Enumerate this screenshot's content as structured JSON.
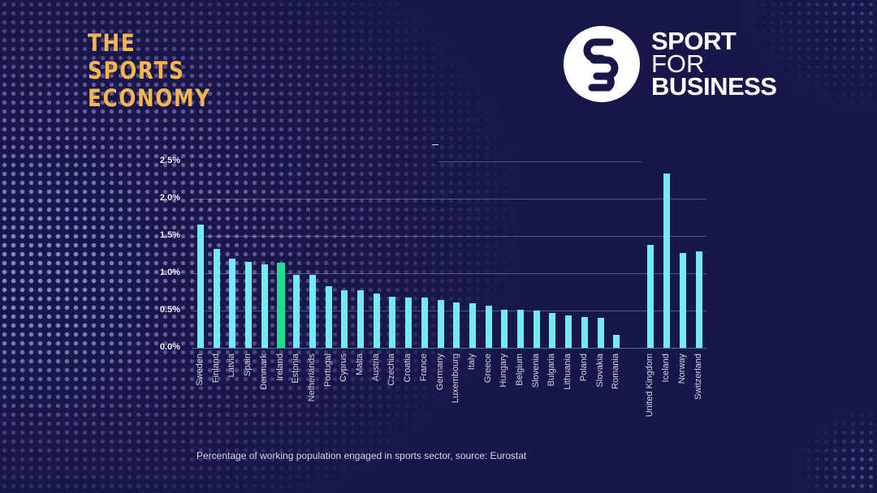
{
  "branding": {
    "left_title_lines": [
      "THE",
      "SPORTS",
      "ECONOMY"
    ],
    "right_logo": {
      "icon": "sb-monogram-icon",
      "lines": [
        "SPORT",
        "FOR",
        "BUSINESS"
      ]
    }
  },
  "colors": {
    "background": "#18174a",
    "bar": "#74eaf7",
    "highlight_bar": "#17e08f",
    "brand_orange": "#f7b54e"
  },
  "caption": "Percentage of working population engaged in sports sector, source: Eurostat",
  "chart_data": {
    "type": "bar",
    "title": "",
    "xlabel": "",
    "ylabel": "",
    "ylim": [
      0,
      2.5
    ],
    "y_ticks": [
      "0.0%",
      "0.5%",
      "1.0%",
      "1.5%",
      "2.0%",
      "2.5%"
    ],
    "grid": true,
    "legend": null,
    "highlight": "Ireland",
    "note": "Caption: Percentage of working population engaged in sports sector, source: Eurostat",
    "categories": [
      "Sweden",
      "Finland",
      "Latvia",
      "Spain",
      "Denmark",
      "Ireland",
      "Estonia",
      "Netherlands",
      "Portugal",
      "Cyprus",
      "Malta",
      "Austria",
      "Czechia",
      "Croatia",
      "France",
      "Germany",
      "Luxembourg",
      "Italy",
      "Greece",
      "Hungary",
      "Belgium",
      "Slovenia",
      "Bulgaria",
      "Lithuania",
      "Poland",
      "Slovakia",
      "Romania",
      "United Kingdom",
      "Iceland",
      "Norway",
      "Switzerland"
    ],
    "values": [
      1.65,
      1.33,
      1.2,
      1.15,
      1.12,
      1.14,
      0.98,
      0.98,
      0.83,
      0.77,
      0.77,
      0.73,
      0.69,
      0.67,
      0.67,
      0.64,
      0.61,
      0.6,
      0.57,
      0.51,
      0.51,
      0.5,
      0.47,
      0.43,
      0.41,
      0.4,
      0.17,
      1.38,
      2.34,
      1.27,
      1.29
    ],
    "units": "%"
  }
}
